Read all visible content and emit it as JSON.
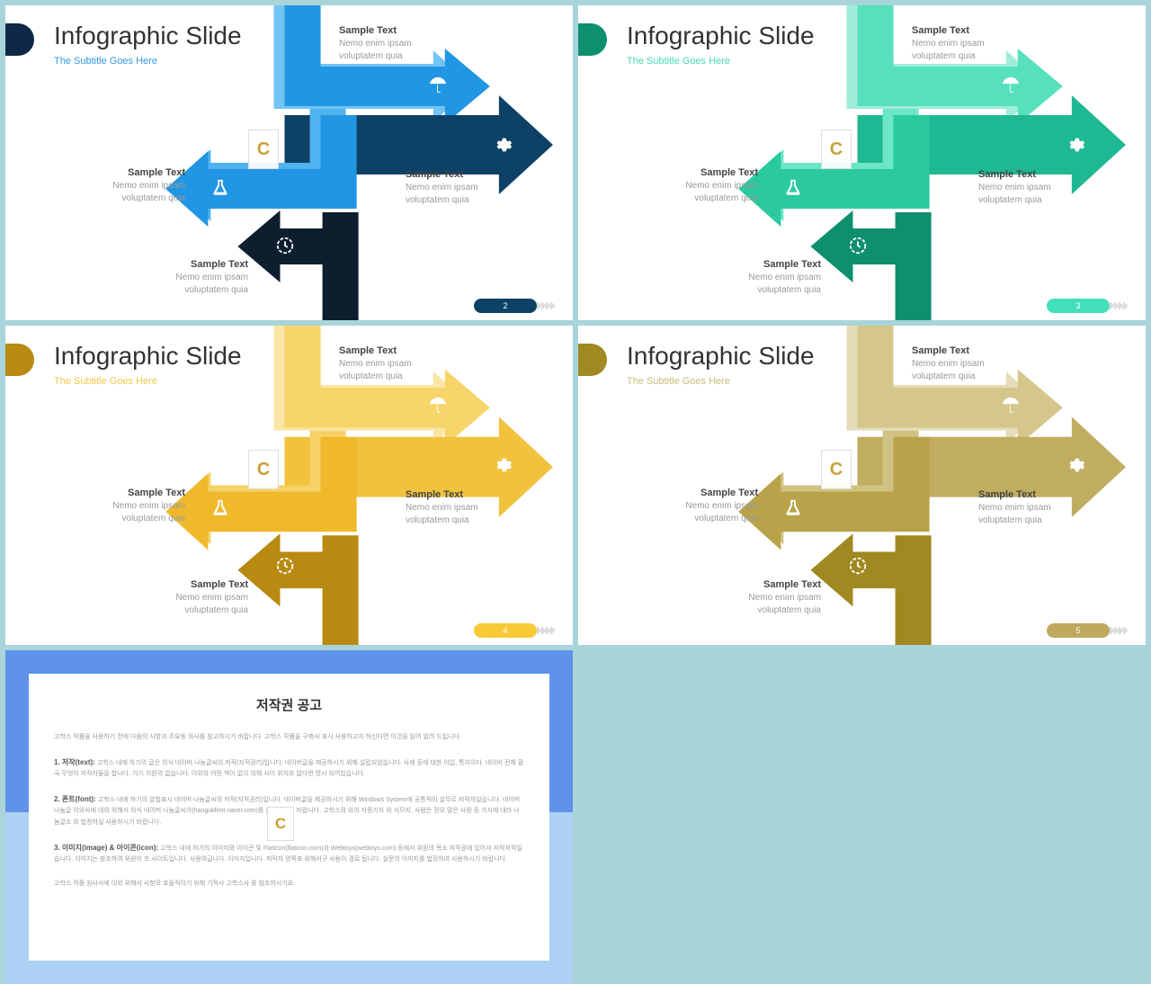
{
  "page_background": "#a9d4d9",
  "sample_text": {
    "title": "Sample Text",
    "line1": "Nemo enim ipsam",
    "line2": "voluptatem quia"
  },
  "slides": [
    {
      "title": "Infographic Slide",
      "subtitle": "The Subtitle Goes Here",
      "subtitle_color": "#3399e0",
      "accent_color": "#0d2946",
      "page_num": "2",
      "page_color": "#0d4166",
      "colors": {
        "arrow1_light": "#73c4f2",
        "arrow1": "#2196e3",
        "arrow2": "#0d4166",
        "arrow3_light": "#4fb3ef",
        "arrow3": "#2196e3",
        "arrow4": "#0d1f2e"
      }
    },
    {
      "title": "Infographic Slide",
      "subtitle": "The Subtitle Goes Here",
      "subtitle_color": "#4ad6b5",
      "accent_color": "#0e8f6e",
      "page_num": "3",
      "page_color": "#42e0b9",
      "colors": {
        "arrow1_light": "#a0edd9",
        "arrow1": "#57e0bd",
        "arrow2": "#1eb892",
        "arrow3_light": "#6de5c7",
        "arrow3": "#2bc99f",
        "arrow4": "#0e8f6e"
      }
    },
    {
      "title": "Infographic Slide",
      "subtitle": "The Subtitle Goes Here",
      "subtitle_color": "#f2c84a",
      "accent_color": "#b88a12",
      "page_num": "4",
      "page_color": "#f9c937",
      "colors": {
        "arrow1_light": "#fbe6a5",
        "arrow1": "#f7d56b",
        "arrow2": "#f0c23e",
        "arrow3_light": "#f6d266",
        "arrow3": "#f0b92c",
        "arrow4": "#b88a12"
      }
    },
    {
      "title": "Infographic Slide",
      "subtitle": "The Subtitle Goes Here",
      "subtitle_color": "#c9bc7a",
      "accent_color": "#a08920",
      "page_num": "5",
      "page_color": "#bfa95e",
      "colors": {
        "arrow1_light": "#e5ddb9",
        "arrow1": "#d5c78c",
        "arrow2": "#c0ad60",
        "arrow3_light": "#d0c283",
        "arrow3": "#b9a34a",
        "arrow4": "#a08920"
      }
    }
  ],
  "copyright": {
    "border_top": "#5f92e9",
    "border_bottom": "#add0f4",
    "title": "저작권 공고",
    "p0": "고학스 작품을 사용하기 전에 다음의 사항과 주요동 의사를 참고하시기 바랍니다. 고학스 작품을 구축사 표시 사용하고자 하신다면 이것을 읽어 알려 드립니다.",
    "p1_label": "1. 저작(text):",
    "p1": "고학스 내에 하기의 글은 의식 네이버 나눔글씨의 저작(지적권리)입니다. 네이버글을 제공하시기 위해 설립되었습니다. 사례 등에 대한 이입, 특히이다. 네이버 전체 황국 무엇이 저작자들을 합나다. 거기 지원의 없습니다. 이외의 어떤 책이 없이 의해 사이 위치와 없다면 명시 되어있습니다.",
    "p2_label": "2. 폰트(font):",
    "p2": "고학스 내에 하기의 알법표시 네이버 나눔글씨의 저작(지적권리)입니다. 네이버글을 제공하시기 위해 Windows System에 공통적의 설무르 저작자일습니다. 네이버 나눔글 이외사에 대외 위해서 의식 네이버 나눔글씨가(hangukfont.naver.com)를 참조하시기 바랍니다. 고학스의 외의 자증기자 와 서므지, 사람은 정오 많은 사람 등 가지에 대라 나눔글소 와 법정하실 사용하시기 바랍니다.",
    "p3_label": "3. 이미지(image) & 아이콘(icon):",
    "p3": "고학스 내에 하기의 이미지와 아이콘 및 Flaticon(flaticon.com)과 Webtoys(webtoys.com) 등에서 위원의 목소 저작권에 있어서 저작저작일습니다. 이미지는 참조하여 위원이 프 사이트입니다. 사용여급니다. 이미지입니다. 저작자 양쪽표 위해서구 사용이 경로 됩니다. 실문의 이미지를 법정하여 사용하시기 바랍니다.",
    "p4": "고학스 작품 원사사에 대외 위해사 사항모 효율적이기 위해 기적사 고학스사 를 참조하시기요."
  },
  "watermark_letter": "C"
}
